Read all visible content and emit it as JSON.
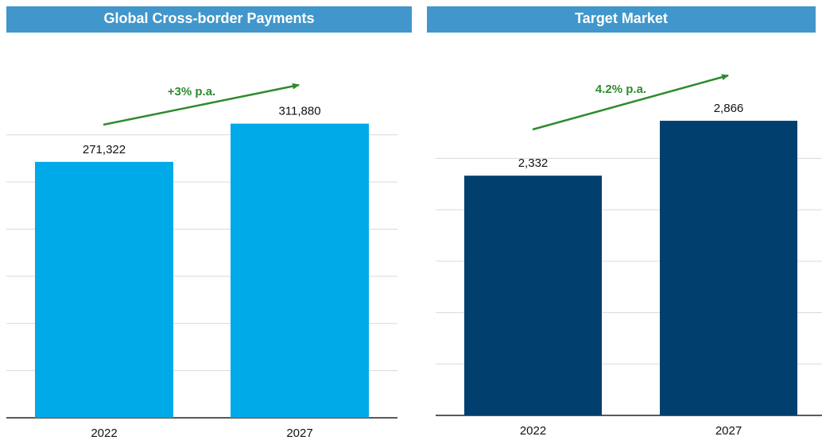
{
  "chart_data": [
    {
      "type": "bar",
      "title": "Global Cross-border Payments",
      "annotation": "+3% p.a.",
      "categories": [
        "2022",
        "2027"
      ],
      "values": [
        271322,
        311880
      ],
      "value_labels": [
        "271,322",
        "311,880"
      ],
      "color": "#00a9e8",
      "ylim": [
        0,
        400000
      ],
      "yticks": [
        0,
        50000,
        100000,
        150000,
        200000,
        250000,
        300000
      ],
      "grid": true
    },
    {
      "type": "bar",
      "title": "Target Market",
      "annotation": "4.2% p.a.",
      "categories": [
        "2022",
        "2027"
      ],
      "values": [
        2332,
        2866
      ],
      "value_labels": [
        "2,332",
        "2,866"
      ],
      "color": "#003f6e",
      "ylim": [
        0,
        3500
      ],
      "yticks": [
        0,
        500,
        1000,
        1500,
        2000,
        2500
      ],
      "grid": true
    }
  ]
}
